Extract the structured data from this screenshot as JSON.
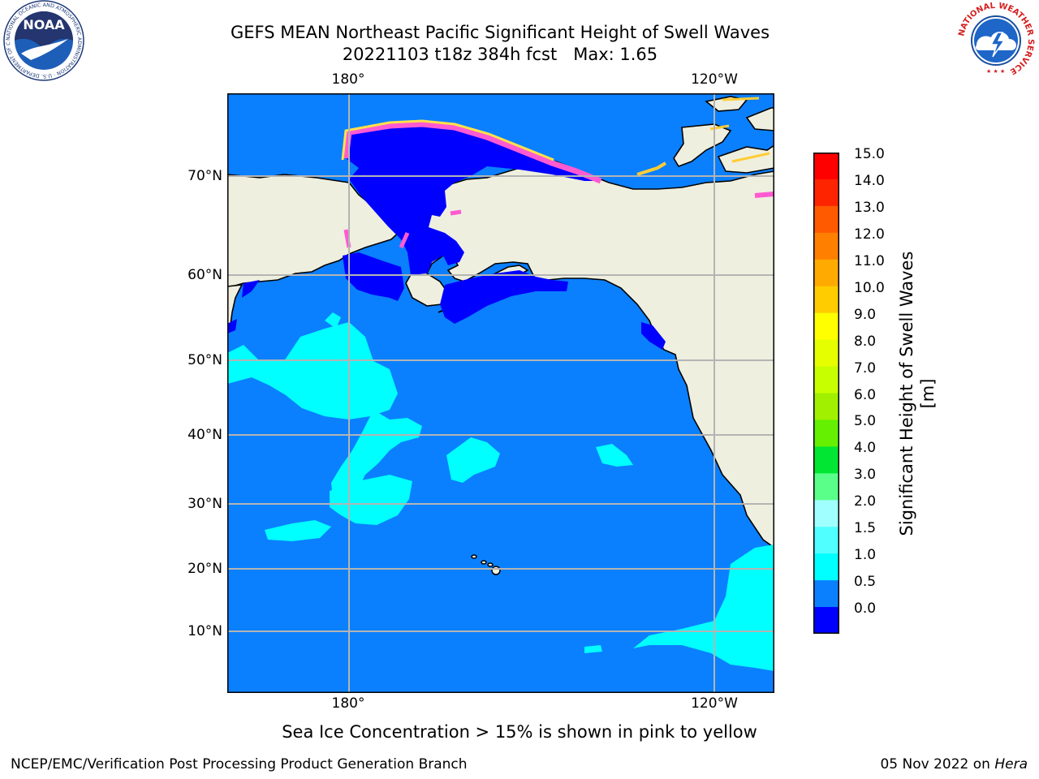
{
  "header": {
    "title": "GEFS MEAN Northeast Pacific Significant Height of Swell Waves",
    "subtitle": "20221103 t18z 384h fcst   Max: 1.65"
  },
  "logos": {
    "left": {
      "name": "NOAA",
      "ring_text": "NATIONAL OCEANIC AND ATMOSPHERIC ADMINISTRATION · U.S. DEPARTMENT OF COMMERCE"
    },
    "right": {
      "ring_text": "NATIONAL WEATHER SERVICE"
    }
  },
  "map": {
    "lon_labels": [
      "180°",
      "120°W"
    ],
    "lat_labels": [
      "70°N",
      "60°N",
      "50°N",
      "40°N",
      "30°N",
      "20°N",
      "10°N"
    ],
    "colors": {
      "land": "#efefdf",
      "ocean_main": "#0a80ff",
      "ocean_deep": "#0000ff",
      "swell_high": "#00ffff",
      "ice_pink": "#ff5ad2",
      "ice_yellow": "#ffe24a",
      "grid": "#b4b4b4"
    }
  },
  "colorbar": {
    "title": "Significant Height of Swell Waves [m]",
    "ticks": [
      "15.0",
      "14.0",
      "13.0",
      "12.0",
      "11.0",
      "10.0",
      "9.0",
      "8.0",
      "7.0",
      "6.0",
      "5.0",
      "4.0",
      "3.0",
      "2.0",
      "1.5",
      "1.0",
      "0.5",
      "0.0"
    ],
    "colors_top_to_bottom": [
      "#ff0000",
      "#ff2400",
      "#ff5a00",
      "#ff8000",
      "#ffaa00",
      "#ffcc00",
      "#ffff00",
      "#e6ff00",
      "#c8ff00",
      "#a0f000",
      "#64f000",
      "#00e632",
      "#5aff8a",
      "#a0ffff",
      "#50ffff",
      "#00ffff",
      "#0a80ff",
      "#0000ff"
    ]
  },
  "notes": {
    "ice": "Sea Ice Concentration > 15% is shown in pink to yellow"
  },
  "footer": {
    "left": "NCEP/EMC/Verification Post Processing Product Generation Branch",
    "right_date": "05 Nov 2022 on",
    "right_machine": "Hera"
  }
}
